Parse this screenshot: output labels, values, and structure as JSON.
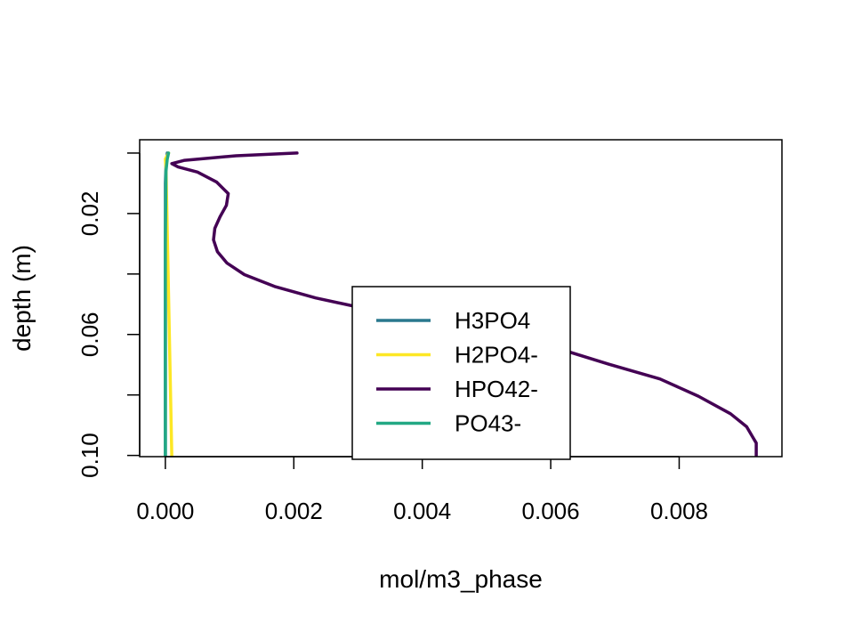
{
  "chart_data": {
    "type": "line",
    "title": "",
    "xlabel": "mol/m3_phase",
    "ylabel": "depth (m)",
    "xlim": [
      -0.0004,
      0.0096
    ],
    "ylim": [
      0.1004,
      -0.0044
    ],
    "x_ticks": [
      0.0,
      0.002,
      0.004,
      0.006,
      0.008
    ],
    "x_tick_labels": [
      "0.000",
      "0.002",
      "0.004",
      "0.006",
      "0.008"
    ],
    "y_ticks": [
      0.0,
      0.02,
      0.04,
      0.06,
      0.08,
      0.1
    ],
    "y_tick_labels": [
      "",
      "0.02",
      "",
      "0.06",
      "",
      "0.10"
    ],
    "grid": false,
    "legend_position": "bottom-center",
    "series": [
      {
        "name": "H3PO4",
        "color": "#2a788e",
        "points": [
          [
            3e-05,
            0.0
          ],
          [
            1e-05,
            0.004
          ],
          [
            0.0,
            0.01
          ],
          [
            0.0,
            0.03
          ],
          [
            0.0,
            0.06
          ],
          [
            0.0,
            0.1
          ]
        ]
      },
      {
        "name": "H2PO4-",
        "color": "#fde725",
        "points": [
          [
            5e-05,
            0.0
          ],
          [
            0.0,
            0.002
          ],
          [
            1e-05,
            0.005
          ],
          [
            0.0001,
            0.1
          ]
        ]
      },
      {
        "name": "HPO42-",
        "color": "#440154",
        "points": [
          [
            0.00205,
            0.0
          ],
          [
            0.0011,
            0.0009
          ],
          [
            0.0003,
            0.0024
          ],
          [
            0.0001,
            0.0035
          ],
          [
            0.0002,
            0.0046
          ],
          [
            0.0005,
            0.0063
          ],
          [
            0.0008,
            0.0096
          ],
          [
            0.00098,
            0.0134
          ],
          [
            0.00095,
            0.0173
          ],
          [
            0.00085,
            0.0211
          ],
          [
            0.00077,
            0.0249
          ],
          [
            0.00075,
            0.0287
          ],
          [
            0.00081,
            0.0326
          ],
          [
            0.00096,
            0.0364
          ],
          [
            0.00123,
            0.0402
          ],
          [
            0.0017,
            0.0441
          ],
          [
            0.00234,
            0.0479
          ],
          [
            0.0031,
            0.0514
          ],
          [
            0.0039,
            0.0543
          ],
          [
            0.0047,
            0.0573
          ],
          [
            0.0054,
            0.0606
          ],
          [
            0.0062,
            0.0652
          ],
          [
            0.0069,
            0.0698
          ],
          [
            0.0077,
            0.0747
          ],
          [
            0.0083,
            0.0804
          ],
          [
            0.0088,
            0.0862
          ],
          [
            0.00905,
            0.0905
          ],
          [
            0.00915,
            0.0941
          ],
          [
            0.0092,
            0.0959
          ],
          [
            0.0092,
            0.1
          ]
        ]
      },
      {
        "name": "PO43-",
        "color": "#22a884",
        "points": [
          [
            5e-05,
            0.0
          ],
          [
            3e-05,
            0.002
          ],
          [
            1e-05,
            0.006
          ],
          [
            0.0,
            0.03
          ],
          [
            0.0,
            0.1
          ]
        ]
      }
    ]
  }
}
